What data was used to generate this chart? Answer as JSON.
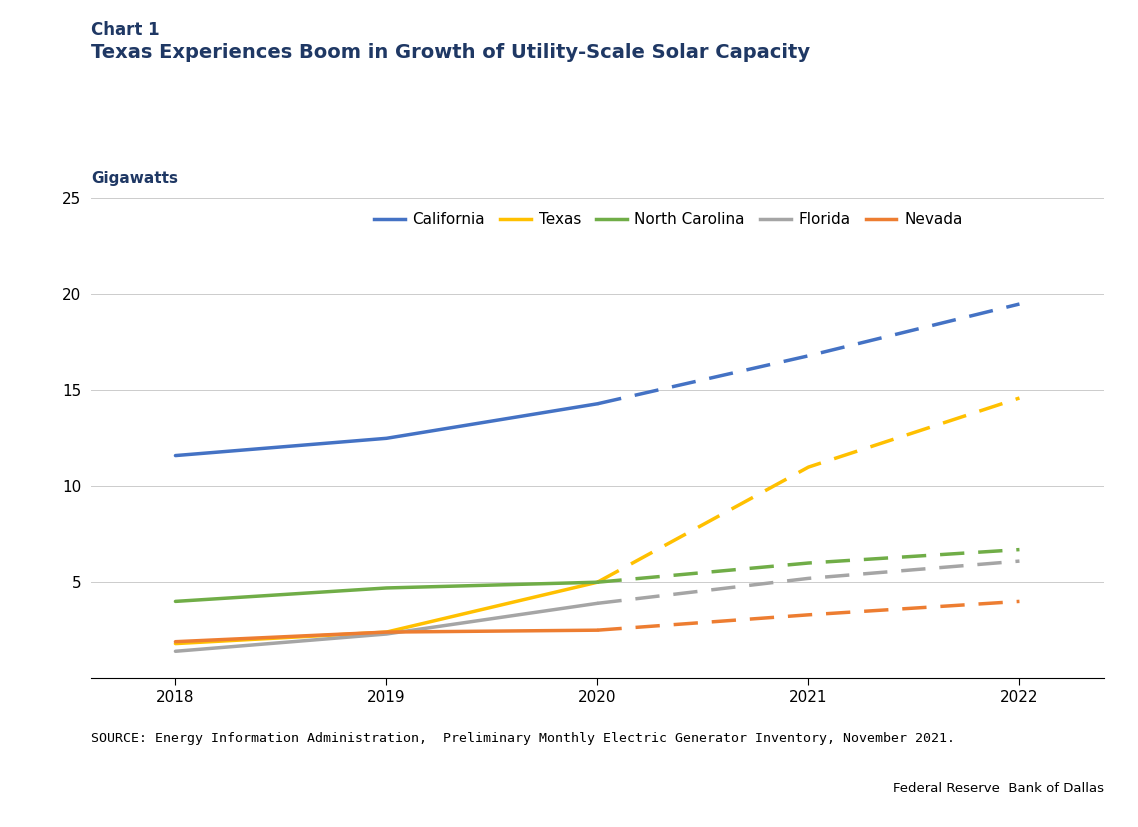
{
  "chart_label": "Chart 1",
  "title": "Texas Experiences Boom in Growth of Utility-Scale Solar Capacity",
  "ylabel": "Gigawatts",
  "source": "SOURCE: Energy Information Administration,  Preliminary Monthly Electric Generator Inventory, November 2021.",
  "footnote": "Federal Reserve  Bank of Dallas",
  "years_solid": [
    2018,
    2019,
    2020
  ],
  "years_dashed": [
    2020,
    2021,
    2022
  ],
  "series": [
    {
      "name": "California",
      "color": "#4472C4",
      "solid": [
        11.6,
        12.5,
        14.3
      ],
      "dashed": [
        14.3,
        16.8,
        19.5
      ]
    },
    {
      "name": "Texas",
      "color": "#FFC000",
      "solid": [
        1.8,
        2.4,
        5.0
      ],
      "dashed": [
        5.0,
        11.0,
        14.6
      ]
    },
    {
      "name": "North Carolina",
      "color": "#70AD47",
      "solid": [
        4.0,
        4.7,
        5.0
      ],
      "dashed": [
        5.0,
        6.0,
        6.7
      ]
    },
    {
      "name": "Florida",
      "color": "#A5A5A5",
      "solid": [
        1.4,
        2.3,
        3.9
      ],
      "dashed": [
        3.9,
        5.2,
        6.1
      ]
    },
    {
      "name": "Nevada",
      "color": "#ED7D31",
      "solid": [
        1.9,
        2.4,
        2.5
      ],
      "dashed": [
        2.5,
        3.3,
        4.0
      ]
    }
  ],
  "ylim": [
    0,
    25
  ],
  "yticks": [
    0,
    5,
    10,
    15,
    20,
    25
  ],
  "xlim": [
    2017.6,
    2022.4
  ],
  "xticks": [
    2018,
    2019,
    2020,
    2021,
    2022
  ],
  "title_color": "#1F3864",
  "label_color": "#1F3864",
  "background_color": "#FFFFFF",
  "chart_label_color": "#1F3864",
  "line_width": 2.5,
  "legend_fontsize": 11,
  "title_fontsize": 14,
  "axis_label_fontsize": 11,
  "tick_fontsize": 11,
  "source_fontsize": 9.5,
  "footnote_fontsize": 9.5
}
